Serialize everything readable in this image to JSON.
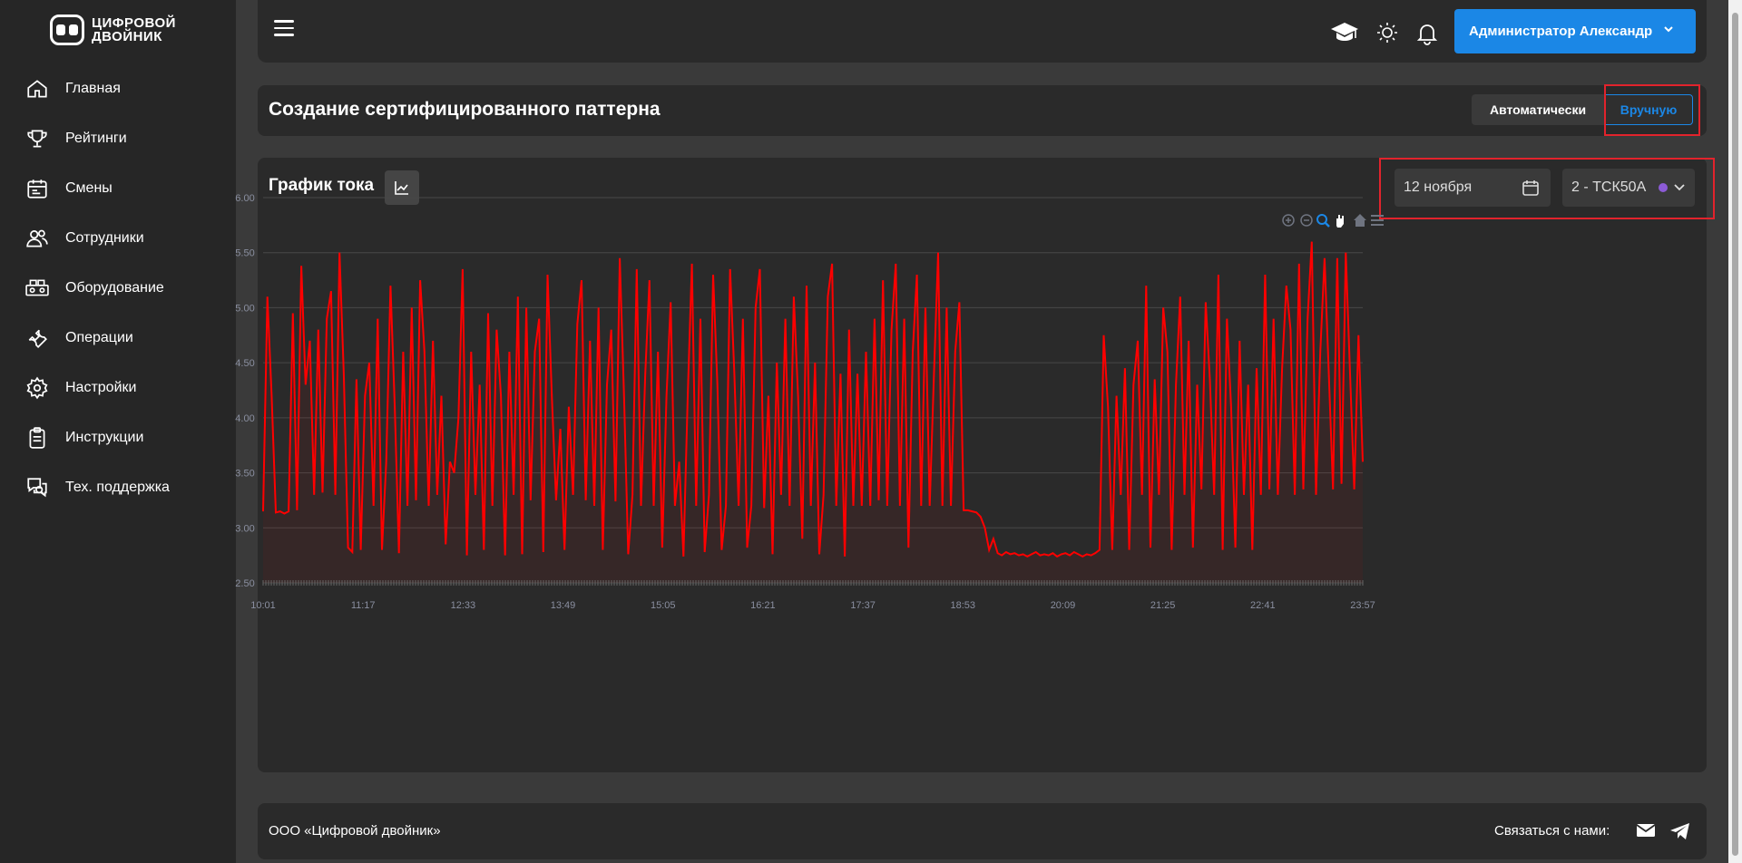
{
  "brand": {
    "line1": "ЦИФРОВОЙ",
    "line2": "ДВОЙНИК"
  },
  "nav": [
    {
      "label": "Главная",
      "icon": "home-icon"
    },
    {
      "label": "Рейтинги",
      "icon": "trophy-icon"
    },
    {
      "label": "Смены",
      "icon": "calendar-icon"
    },
    {
      "label": "Сотрудники",
      "icon": "users-icon"
    },
    {
      "label": "Оборудование",
      "icon": "equipment-icon"
    },
    {
      "label": "Операции",
      "icon": "wrench-icon"
    },
    {
      "label": "Настройки",
      "icon": "gear-icon"
    },
    {
      "label": "Инструкции",
      "icon": "clipboard-icon"
    },
    {
      "label": "Тех. поддержка",
      "icon": "support-chat-icon"
    }
  ],
  "header": {
    "user": "Администратор Александр"
  },
  "page": {
    "title": "Создание сертифицированного паттерна",
    "mode_auto": "Автоматически",
    "mode_manual": "Вручную",
    "active_mode": "manual"
  },
  "chart_panel": {
    "title": "График тока",
    "date": "12 ноября",
    "equipment": "2 - ТСК50А"
  },
  "footer": {
    "company": "ООО «Цифровой двойник»",
    "contact": "Связаться с нами:"
  },
  "colors": {
    "accent": "#1b87e6",
    "series": "#ff0000",
    "highlight": "#e2232c"
  },
  "chart_data": {
    "type": "line",
    "title": "График тока",
    "xlabel": "",
    "ylabel": "",
    "ylim": [
      2.5,
      6.0
    ],
    "yticks": [
      "6.00",
      "5.50",
      "5.00",
      "4.50",
      "4.00",
      "3.50",
      "3.00",
      "2.50"
    ],
    "xticks": [
      "10:01",
      "11:17",
      "12:33",
      "13:49",
      "15:05",
      "16:21",
      "17:37",
      "18:53",
      "20:09",
      "21:25",
      "22:41",
      "23:57"
    ],
    "x_range": [
      "10:01",
      "23:57"
    ],
    "grid": true,
    "toolbar": [
      "zoom-in-icon",
      "zoom-out-icon",
      "zoom-select-icon",
      "pan-icon",
      "reset-home-icon",
      "menu-icon"
    ],
    "series": [
      {
        "color": "#ff0000",
        "segments": [
          {
            "from": "10:01",
            "to": "18:53",
            "pattern": "pulses",
            "base": 3.15,
            "low": 2.8,
            "peak_range": [
              4.2,
              5.52
            ]
          },
          {
            "from": "18:53",
            "to": "20:09",
            "pattern": "flat",
            "base": 2.76
          },
          {
            "from": "20:09",
            "to": "23:57",
            "pattern": "pulses",
            "base": 3.35,
            "low": 2.82,
            "peak_range": [
              4.2,
              5.62
            ]
          }
        ],
        "values": [
          3.15,
          5.1,
          4.2,
          3.14,
          3.15,
          3.13,
          3.15,
          4.95,
          3.16,
          5.38,
          4.3,
          4.7,
          3.3,
          4.8,
          3.32,
          4.9,
          5.15,
          3.3,
          5.5,
          4.4,
          2.82,
          2.78,
          4.35,
          2.8,
          4.2,
          4.5,
          3.2,
          4.9,
          2.8,
          3.6,
          5.2,
          4.1,
          2.77,
          4.6,
          3.2,
          5.0,
          3.25,
          5.25,
          4.6,
          3.2,
          4.7,
          3.3,
          4.2,
          2.85,
          3.6,
          3.5,
          4.0,
          5.35,
          2.75,
          4.6,
          3.3,
          4.3,
          2.8,
          4.95,
          3.2,
          4.8,
          4.2,
          2.75,
          4.6,
          3.3,
          5.1,
          2.76,
          5.0,
          3.25,
          4.6,
          4.9,
          2.78,
          5.3,
          4.2,
          3.25,
          3.9,
          2.8,
          4.1,
          3.3,
          4.85,
          5.25,
          3.25,
          4.7,
          3.2,
          5.0,
          2.8,
          4.3,
          4.8,
          3.24,
          5.45,
          4.2,
          2.76,
          3.3,
          5.35,
          3.2,
          4.4,
          5.25,
          3.2,
          4.6,
          2.82,
          4.2,
          5.05,
          3.2,
          3.6,
          2.74,
          4.2,
          5.4,
          3.2,
          4.9,
          2.78,
          3.3,
          5.3,
          4.3,
          2.8,
          3.2,
          5.35,
          4.4,
          3.2,
          4.9,
          2.82,
          3.2,
          5.0,
          5.35,
          3.18,
          4.2,
          2.76,
          4.5,
          3.3,
          4.9,
          3.2,
          5.1,
          4.2,
          2.9,
          5.2,
          3.2,
          4.5,
          2.76,
          3.3,
          5.1,
          5.4,
          3.2,
          4.4,
          2.74,
          4.8,
          3.2,
          4.4,
          3.2,
          4.6,
          3.2,
          4.9,
          3.25,
          5.25,
          3.2,
          4.8,
          5.4,
          3.2,
          4.9,
          2.82,
          4.6,
          5.3,
          3.2,
          5.0,
          3.2,
          4.4,
          5.5,
          3.2,
          5.0,
          3.2,
          4.6,
          5.05,
          3.16,
          3.16,
          3.15,
          3.14,
          3.1,
          3.0,
          2.8,
          2.9,
          2.77,
          2.75,
          2.78,
          2.76,
          2.77,
          2.75,
          2.76,
          2.74,
          2.76,
          2.78,
          2.75,
          2.76,
          2.75,
          2.77,
          2.74,
          2.76,
          2.77,
          2.75,
          2.78,
          2.76,
          2.74,
          2.76,
          2.75,
          2.77,
          2.8,
          4.75,
          4.1,
          2.8,
          4.2,
          3.3,
          4.45,
          2.8,
          4.3,
          4.7,
          3.3,
          5.2,
          2.82,
          4.35,
          3.3,
          5.0,
          4.6,
          2.8,
          4.3,
          5.1,
          3.3,
          4.7,
          2.82,
          4.3,
          3.35,
          5.05,
          4.35,
          3.3,
          5.3,
          2.8,
          4.9,
          4.1,
          2.82,
          4.7,
          3.3,
          4.3,
          2.8,
          4.45,
          3.3,
          5.3,
          3.35,
          4.9,
          3.3,
          4.45,
          5.2,
          4.8,
          3.3,
          5.4,
          3.35,
          4.9,
          5.6,
          3.3,
          4.6,
          5.45,
          4.4,
          3.35,
          5.45,
          3.4,
          5.5,
          4.4,
          3.35,
          4.75,
          3.6
        ]
      }
    ]
  }
}
